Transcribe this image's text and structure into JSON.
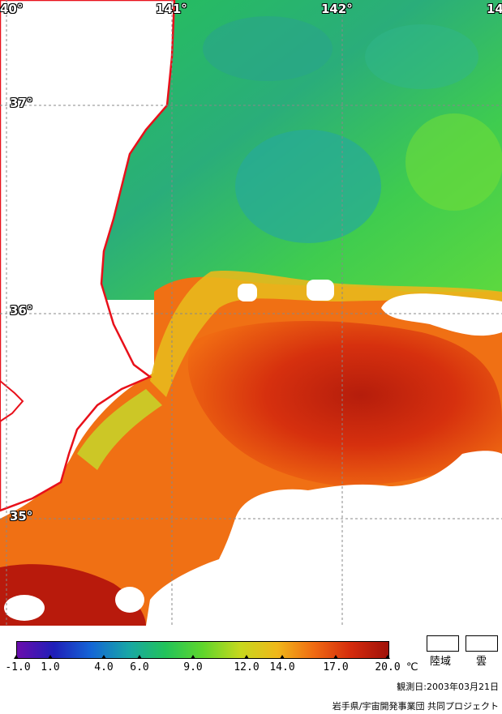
{
  "map": {
    "longitude_labels": [
      "40°",
      "141°",
      "142°",
      "14"
    ],
    "latitude_labels": [
      "37°",
      "36°",
      "35°"
    ]
  },
  "legend": {
    "ticks": [
      "-1.0",
      "1.0",
      "4.0",
      "6.0",
      "9.0",
      "12.0",
      "14.0",
      "17.0",
      "20.0"
    ],
    "unit": "℃",
    "land_label": "陸域",
    "cloud_label": "雲",
    "colors": [
      "#6a0dad",
      "#1f1fb8",
      "#1466d6",
      "#18a6a6",
      "#22c35a",
      "#5fd62c",
      "#c6d81e",
      "#f0b81a",
      "#f06a12",
      "#d42a0c",
      "#a0120a"
    ]
  },
  "footer": {
    "observation_date": "観測日:2003年03月21日",
    "credit": "岩手県/宇宙開発事業団 共同プロジェクト"
  }
}
